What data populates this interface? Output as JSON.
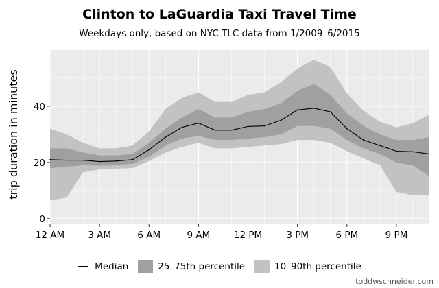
{
  "title": "Clinton to LaGuardia Taxi Travel Time",
  "subtitle": "Weekdays only, based on NYC TLC data from 1/2009–6/2015",
  "credit": "toddwschneider.com",
  "legend": {
    "median": "Median",
    "iqr": "25–75th percentile",
    "p1090": "10–90th percentile"
  },
  "colors": {
    "panel_bg": "#ebebeb",
    "grid": "#ffffff",
    "band_10_90": "#c2c2c2",
    "band_25_75": "#a0a0a0",
    "median": "#000000"
  },
  "chart_data": {
    "type": "area",
    "xlabel": "",
    "ylabel": "trip duration in minutes",
    "x": [
      0,
      1,
      2,
      3,
      4,
      5,
      6,
      7,
      8,
      9,
      10,
      11,
      12,
      13,
      14,
      15,
      16,
      17,
      18,
      19,
      20,
      21,
      22,
      23
    ],
    "x_ticks": [
      {
        "value": 0,
        "label": "12 AM"
      },
      {
        "value": 3,
        "label": "3 AM"
      },
      {
        "value": 6,
        "label": "6 AM"
      },
      {
        "value": 9,
        "label": "9 AM"
      },
      {
        "value": 12,
        "label": "12 PM"
      },
      {
        "value": 15,
        "label": "3 PM"
      },
      {
        "value": 18,
        "label": "6 PM"
      },
      {
        "value": 21,
        "label": "9 PM"
      }
    ],
    "y_ticks": [
      0,
      20,
      40
    ],
    "xlim": [
      0,
      23
    ],
    "ylim": [
      -2,
      60
    ],
    "grid": true,
    "legend_position": "bottom",
    "series": [
      {
        "name": "Median",
        "values": [
          21,
          20.8,
          20.8,
          20.3,
          20.5,
          21,
          24.5,
          29,
          32.5,
          34,
          31.5,
          31.5,
          32.8,
          33,
          35,
          38.7,
          39.3,
          38,
          32,
          28,
          26,
          24,
          23.8,
          23
        ]
      },
      {
        "name": "25–75th percentile",
        "lower": [
          18,
          18.5,
          19,
          18.8,
          19,
          19.5,
          22,
          26,
          28.5,
          29.5,
          28,
          28,
          28.5,
          29,
          30,
          33,
          33,
          32,
          28,
          25,
          23,
          20,
          19,
          15
        ],
        "upper": [
          25,
          25,
          23.5,
          22.5,
          22.5,
          23,
          27,
          32,
          36,
          39,
          36,
          36,
          38,
          39,
          41,
          45.5,
          48,
          44,
          37.5,
          33,
          30,
          28,
          28,
          29
        ]
      },
      {
        "name": "10–90th percentile",
        "lower": [
          6.5,
          7.5,
          16.5,
          17.5,
          17.8,
          18,
          20.5,
          23.5,
          25.5,
          27,
          25,
          25,
          25.5,
          26,
          26.5,
          28,
          28,
          27,
          24,
          21.5,
          19,
          9.5,
          8.3,
          8.2
        ],
        "upper": [
          32,
          30,
          27,
          25,
          25,
          26,
          31,
          39,
          43,
          45,
          41.5,
          41.5,
          44,
          45,
          48.5,
          53.5,
          56.5,
          54,
          44.5,
          38.5,
          34.5,
          32.5,
          34,
          37
        ]
      }
    ]
  }
}
